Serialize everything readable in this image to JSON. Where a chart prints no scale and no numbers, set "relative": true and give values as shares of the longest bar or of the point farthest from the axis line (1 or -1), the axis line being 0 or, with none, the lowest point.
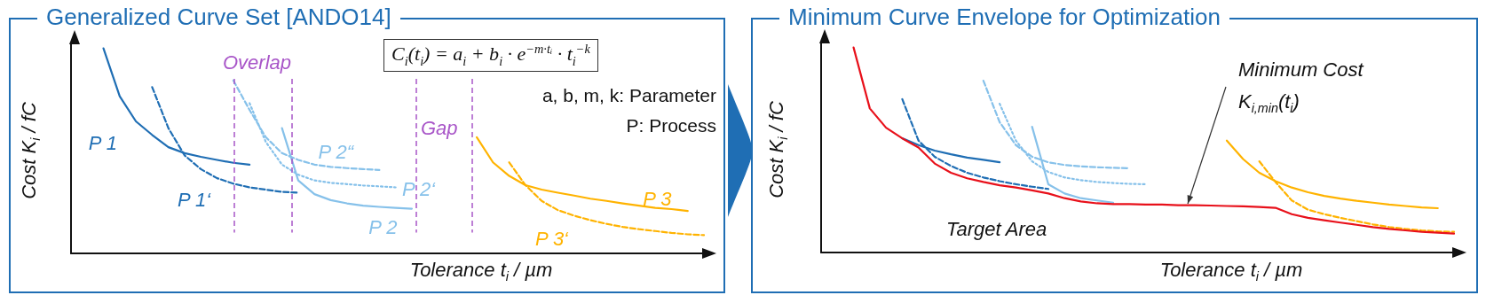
{
  "chart_data": [
    {
      "type": "line",
      "title": "Generalized Curve Set [ANDO14]",
      "xlabel": "Tolerance t$_{i}$ / µm",
      "ylabel": "Cost K$_{i}$ / fC",
      "relative": true,
      "grid": false,
      "legend": false,
      "marker": "none",
      "annotations": [
        "C$_{i}$(t$_{i}$) = a$_{i}$ + b$_{i}$ · e$^{−m·tᵢ}$ · t$_{i}$$^{−k}$",
        "a, b, m, k: Parameter",
        "P: Process",
        "Overlap",
        "Gap"
      ],
      "categories": [
        null,
        null,
        null,
        null,
        null,
        null,
        null,
        null,
        null,
        null,
        null,
        null,
        null,
        null,
        null,
        null,
        null,
        null,
        null,
        null,
        null,
        null,
        null,
        null,
        null,
        null,
        null,
        null,
        null,
        null,
        null,
        null,
        null,
        null,
        null,
        null,
        null,
        null,
        null,
        null
      ],
      "series": [
        {
          "name": "P 1",
          "color": "#1f6eb4",
          "line_style": "solid",
          "values": [
            null,
            null,
            1,
            0.767,
            0.644,
            0.578,
            0.518,
            0.489,
            0.471,
            0.456,
            0.442,
            0.433,
            null,
            null,
            null,
            null,
            null,
            null,
            null,
            null,
            null,
            null,
            null,
            null,
            null,
            null,
            null,
            null,
            null,
            null,
            null,
            null,
            null,
            null,
            null,
            null,
            null,
            null,
            null,
            null
          ]
        },
        {
          "name": "P 1‘",
          "color": "#1f6eb4",
          "line_style": "dashed",
          "values": [
            null,
            null,
            null,
            null,
            null,
            0.811,
            0.611,
            0.478,
            0.411,
            0.367,
            0.34,
            0.322,
            0.311,
            0.3,
            0.296,
            null,
            null,
            null,
            null,
            null,
            null,
            null,
            null,
            null,
            null,
            null,
            null,
            null,
            null,
            null,
            null,
            null,
            null,
            null,
            null,
            null,
            null,
            null,
            null,
            null
          ]
        },
        {
          "name": "P 2“",
          "color": "#86c1ea",
          "line_style": "dashed",
          "values": [
            null,
            null,
            null,
            null,
            null,
            null,
            null,
            null,
            null,
            null,
            0.844,
            0.7,
            0.567,
            0.489,
            0.456,
            0.433,
            0.422,
            0.416,
            0.411,
            0.407,
            null,
            null,
            null,
            null,
            null,
            null,
            null,
            null,
            null,
            null,
            null,
            null,
            null,
            null,
            null,
            null,
            null,
            null,
            null,
            null
          ]
        },
        {
          "name": "P 2‘",
          "color": "#86c1ea",
          "line_style": "dotted",
          "values": [
            null,
            null,
            null,
            null,
            null,
            null,
            null,
            null,
            null,
            null,
            null,
            0.733,
            0.544,
            0.433,
            0.384,
            0.356,
            0.344,
            0.338,
            0.331,
            0.327,
            0.322,
            null,
            null,
            null,
            null,
            null,
            null,
            null,
            null,
            null,
            null,
            null,
            null,
            null,
            null,
            null,
            null,
            null,
            null,
            null
          ]
        },
        {
          "name": "P 2",
          "color": "#86c1ea",
          "line_style": "solid",
          "values": [
            null,
            null,
            null,
            null,
            null,
            null,
            null,
            null,
            null,
            null,
            null,
            null,
            null,
            0.611,
            0.356,
            0.289,
            0.26,
            0.244,
            0.233,
            0.227,
            0.222,
            0.218,
            null,
            null,
            null,
            null,
            null,
            null,
            null,
            null,
            null,
            null,
            null,
            null,
            null,
            null,
            null,
            null,
            null,
            null
          ]
        },
        {
          "name": "P 3",
          "color": "#ffb300",
          "line_style": "solid",
          "values": [
            null,
            null,
            null,
            null,
            null,
            null,
            null,
            null,
            null,
            null,
            null,
            null,
            null,
            null,
            null,
            null,
            null,
            null,
            null,
            null,
            null,
            null,
            null,
            null,
            null,
            0.567,
            0.444,
            0.378,
            0.333,
            0.311,
            0.296,
            0.282,
            0.267,
            0.256,
            0.244,
            0.233,
            0.222,
            0.216,
            0.207,
            null
          ]
        },
        {
          "name": "P 3‘",
          "color": "#ffb300",
          "line_style": "dashed",
          "values": [
            null,
            null,
            null,
            null,
            null,
            null,
            null,
            null,
            null,
            null,
            null,
            null,
            null,
            null,
            null,
            null,
            null,
            null,
            null,
            null,
            null,
            null,
            null,
            null,
            null,
            null,
            null,
            0.444,
            0.333,
            0.256,
            0.211,
            0.184,
            0.162,
            0.144,
            0.129,
            0.118,
            0.109,
            0.1,
            0.093,
            0.089
          ]
        }
      ]
    },
    {
      "type": "line",
      "title": "Minimum Curve Envelope for Optimization",
      "xlabel": "Tolerance t$_{i}$ / µm",
      "ylabel": "Cost K$_{i}$ / fC",
      "relative": true,
      "grid": false,
      "legend": false,
      "marker": "none",
      "annotations": [
        "Minimum Cost",
        "K$_{i,min}$(t$_{i}$)",
        "Target Area"
      ],
      "categories": [
        null,
        null,
        null,
        null,
        null,
        null,
        null,
        null,
        null,
        null,
        null,
        null,
        null,
        null,
        null,
        null,
        null,
        null,
        null,
        null,
        null,
        null,
        null,
        null,
        null,
        null,
        null,
        null,
        null,
        null,
        null,
        null,
        null,
        null,
        null,
        null,
        null,
        null,
        null,
        null
      ],
      "series": [
        {
          "color": "#1f6eb4",
          "line_style": "solid",
          "values": [
            null,
            null,
            null,
            null,
            null,
            0.557,
            0.524,
            0.497,
            0.479,
            0.463,
            0.452,
            0.44,
            null,
            null,
            null,
            null,
            null,
            null,
            null,
            null,
            null,
            null,
            null,
            null,
            null,
            null,
            null,
            null,
            null,
            null,
            null,
            null,
            null,
            null,
            null,
            null,
            null,
            null,
            null,
            null
          ]
        },
        {
          "color": "#1f6eb4",
          "line_style": "dashed",
          "values": [
            null,
            null,
            null,
            null,
            null,
            0.748,
            0.546,
            0.467,
            0.422,
            0.389,
            0.366,
            0.348,
            0.333,
            0.321,
            0.31,
            null,
            null,
            null,
            null,
            null,
            null,
            null,
            null,
            null,
            null,
            null,
            null,
            null,
            null,
            null,
            null,
            null,
            null,
            null,
            null,
            null,
            null,
            null,
            null,
            null
          ]
        },
        {
          "color": "#86c1ea",
          "line_style": "dashed",
          "values": [
            null,
            null,
            null,
            null,
            null,
            null,
            null,
            null,
            null,
            null,
            0.838,
            0.636,
            0.524,
            0.467,
            0.44,
            0.427,
            0.42,
            0.416,
            0.413,
            0.411,
            null,
            null,
            null,
            null,
            null,
            null,
            null,
            null,
            null,
            null,
            null,
            null,
            null,
            null,
            null,
            null,
            null,
            null,
            null,
            null
          ]
        },
        {
          "color": "#86c1ea",
          "line_style": "dotted",
          "values": [
            null,
            null,
            null,
            null,
            null,
            null,
            null,
            null,
            null,
            null,
            null,
            0.726,
            0.546,
            0.445,
            0.393,
            0.366,
            0.353,
            0.344,
            0.339,
            0.335,
            0.333,
            null,
            null,
            null,
            null,
            null,
            null,
            null,
            null,
            null,
            null,
            null,
            null,
            null,
            null,
            null,
            null,
            null,
            null,
            null
          ]
        },
        {
          "color": "#86c1ea",
          "line_style": "solid",
          "values": [
            null,
            null,
            null,
            null,
            null,
            null,
            null,
            null,
            null,
            null,
            null,
            null,
            null,
            0.613,
            0.333,
            0.288,
            0.265,
            0.254,
            0.243,
            null,
            null,
            null,
            null,
            null,
            null,
            null,
            null,
            null,
            null,
            null,
            null,
            null,
            null,
            null,
            null,
            null,
            null,
            null,
            null,
            null
          ]
        },
        {
          "color": "#ffb300",
          "line_style": "solid",
          "values": [
            null,
            null,
            null,
            null,
            null,
            null,
            null,
            null,
            null,
            null,
            null,
            null,
            null,
            null,
            null,
            null,
            null,
            null,
            null,
            null,
            null,
            null,
            null,
            null,
            null,
            0.546,
            0.456,
            0.389,
            0.348,
            0.317,
            0.294,
            0.276,
            0.263,
            0.252,
            0.243,
            0.234,
            0.227,
            0.22,
            0.216,
            null
          ]
        },
        {
          "color": "#ffb300",
          "line_style": "dashed",
          "values": [
            null,
            null,
            null,
            null,
            null,
            null,
            null,
            null,
            null,
            null,
            null,
            null,
            null,
            null,
            null,
            null,
            null,
            null,
            null,
            null,
            null,
            null,
            null,
            null,
            null,
            null,
            null,
            0.445,
            0.344,
            0.254,
            0.209,
            0.187,
            0.169,
            0.153,
            0.137,
            0.124,
            0.115,
            0.108,
            0.103,
            0.101
          ]
        },
        {
          "color": "#e8101a",
          "line_style": "solid",
          "values": [
            null,
            null,
            1,
            0.703,
            0.609,
            0.557,
            0.512,
            0.434,
            0.389,
            0.362,
            0.344,
            0.328,
            0.317,
            0.303,
            0.288,
            0.265,
            0.249,
            0.24,
            0.236,
            0.236,
            0.234,
            0.234,
            0.231,
            0.231,
            0.229,
            0.227,
            0.225,
            0.222,
            0.218,
            0.187,
            0.169,
            0.157,
            0.146,
            0.135,
            0.124,
            0.115,
            0.108,
            0.101,
            0.097,
            0.092
          ]
        }
      ]
    }
  ]
}
